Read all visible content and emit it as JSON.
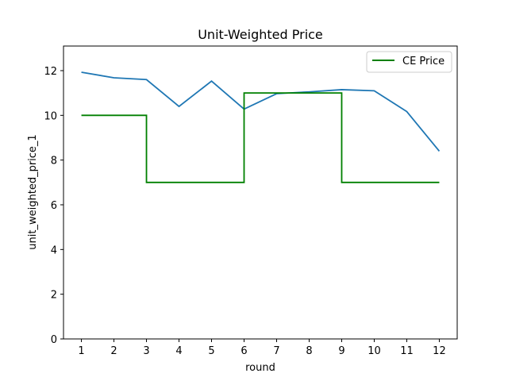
{
  "chart_data": {
    "type": "line",
    "title": "Unit-Weighted Price",
    "xlabel": "round",
    "ylabel": "unit_weighted_price_1",
    "xlim": [
      0.45,
      12.55
    ],
    "ylim": [
      0,
      13.1
    ],
    "xticks": [
      1,
      2,
      3,
      4,
      5,
      6,
      7,
      8,
      9,
      10,
      11,
      12
    ],
    "yticks": [
      0,
      2,
      4,
      6,
      8,
      10,
      12
    ],
    "grid": false,
    "legend_position": "top-right",
    "series": [
      {
        "name": "",
        "style": "line",
        "color": "#1f77b4",
        "x": [
          1,
          2,
          3,
          4,
          5,
          6,
          7,
          8,
          9,
          10,
          11,
          12
        ],
        "y": [
          11.93,
          11.68,
          11.6,
          10.4,
          11.53,
          10.28,
          10.97,
          11.05,
          11.15,
          11.1,
          10.17,
          8.4
        ]
      },
      {
        "name": "CE Price",
        "style": "step",
        "color": "#008000",
        "x": [
          1,
          3,
          3,
          6,
          6,
          9,
          9,
          12
        ],
        "y": [
          10,
          10,
          7,
          7,
          11,
          11,
          7,
          7
        ]
      }
    ]
  }
}
